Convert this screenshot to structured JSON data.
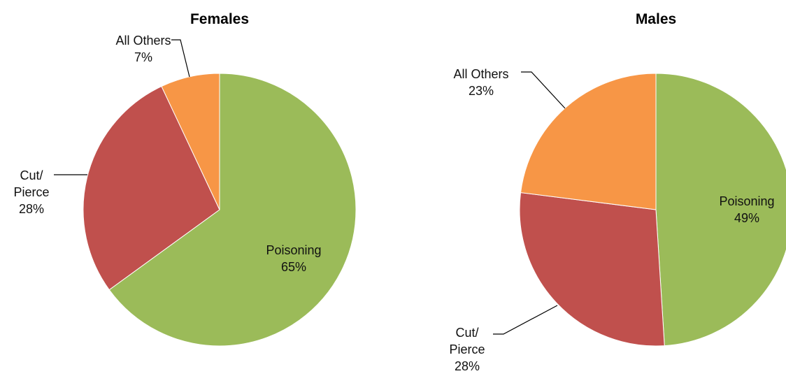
{
  "chart_data": [
    {
      "type": "pie",
      "title": "Females",
      "categories": [
        "Poisoning",
        "Cut/ Pierce",
        "All Others"
      ],
      "values": [
        65,
        28,
        7
      ],
      "value_labels": [
        "65%",
        "28%",
        "7%"
      ],
      "colors": [
        "#9bbb59",
        "#c0504d",
        "#f79646"
      ]
    },
    {
      "type": "pie",
      "title": "Males",
      "categories": [
        "Poisoning",
        "Cut/ Pierce",
        "All Others"
      ],
      "values": [
        49,
        28,
        23
      ],
      "value_labels": [
        "49%",
        "28%",
        "23%"
      ],
      "colors": [
        "#9bbb59",
        "#c0504d",
        "#f79646"
      ]
    }
  ]
}
